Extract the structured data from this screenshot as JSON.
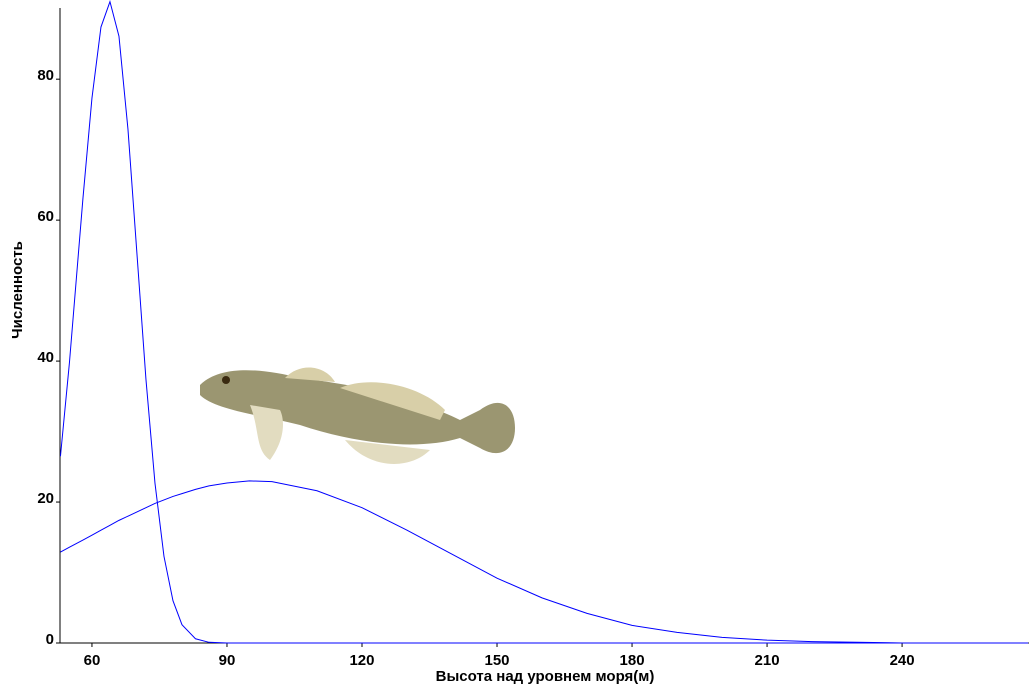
{
  "chart_data": {
    "type": "line",
    "x_label": "Высота над уровнем моря(м)",
    "y_label": "Численность",
    "x": [
      53,
      55,
      58,
      60,
      62,
      64,
      66,
      68,
      70,
      72,
      74,
      76,
      78,
      80,
      83,
      86,
      90,
      95,
      100,
      110,
      120,
      130,
      140,
      150,
      160,
      170,
      180,
      190,
      200,
      210,
      220,
      230,
      240,
      250,
      260,
      268
    ],
    "series": [
      {
        "color": "#0000ff",
        "values": [
          26.5,
          39.8,
          63.1,
          77.3,
          87.4,
          91,
          86.1,
          72.9,
          55.2,
          37.4,
          22.7,
          12.3,
          6.0,
          2.6,
          0.6,
          0.1,
          0,
          0,
          0,
          0,
          0,
          0,
          0,
          0,
          0,
          0,
          0,
          0,
          0,
          0,
          0,
          0,
          0,
          0,
          0,
          0
        ]
      },
      {
        "color": "#0000ff",
        "values": [
          12.9,
          13.6,
          14.6,
          15.3,
          16.0,
          16.7,
          17.4,
          18.0,
          18.6,
          19.2,
          19.8,
          20.3,
          20.8,
          21.2,
          21.8,
          22.3,
          22.7,
          23,
          22.9,
          21.6,
          19.2,
          16.0,
          12.6,
          9.2,
          6.4,
          4.2,
          2.5,
          1.5,
          0.8,
          0.4,
          0.2,
          0.1,
          0,
          0,
          0,
          0
        ]
      }
    ],
    "xlim": [
      52.9,
      268.2
    ],
    "ylim": [
      0,
      90.1
    ],
    "xticks": [
      60,
      90,
      120,
      150,
      180,
      210,
      240
    ],
    "yticks": [
      0,
      20,
      40,
      60,
      80
    ],
    "grid": false
  }
}
